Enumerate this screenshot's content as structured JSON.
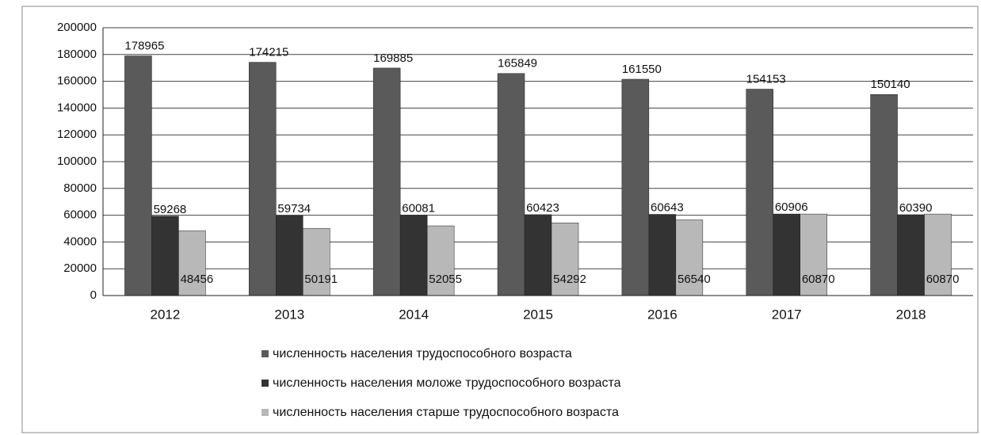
{
  "chart_data": {
    "type": "bar",
    "categories": [
      "2012",
      "2013",
      "2014",
      "2015",
      "2016",
      "2017",
      "2018"
    ],
    "series": [
      {
        "name": "численность населения трудоспособного возраста",
        "color": "#5a5a5a",
        "values": [
          178965,
          174215,
          169885,
          165849,
          161550,
          154153,
          150140
        ]
      },
      {
        "name": "численность населения моложе трудоспособного возраста",
        "color": "#333333",
        "values": [
          59268,
          59734,
          60081,
          60423,
          60643,
          60906,
          60390
        ]
      },
      {
        "name": "численность населения старше трудоспособного возраста",
        "color": "#b8b8b8",
        "values": [
          48456,
          50191,
          52055,
          54292,
          56540,
          60870,
          60870
        ]
      }
    ],
    "ylim": [
      0,
      200000
    ],
    "yticks": [
      0,
      20000,
      40000,
      60000,
      80000,
      100000,
      120000,
      140000,
      160000,
      180000,
      200000
    ],
    "grid": true,
    "legend": "bottom"
  }
}
